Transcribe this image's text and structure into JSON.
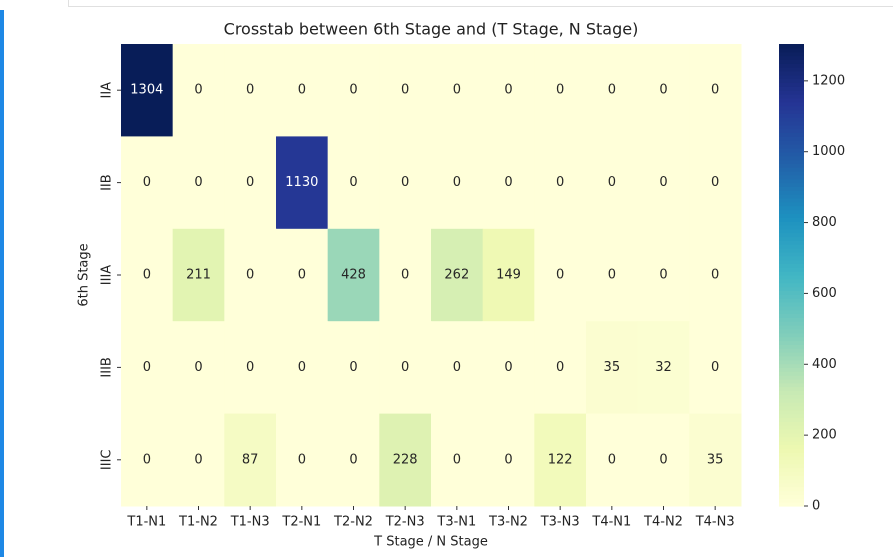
{
  "chart_data": {
    "type": "heatmap",
    "title": "Crosstab between 6th Stage and (T Stage, N Stage)",
    "xlabel": "T Stage / N Stage",
    "ylabel": "6th Stage",
    "x_categories": [
      "T1-N1",
      "T1-N2",
      "T1-N3",
      "T2-N1",
      "T2-N2",
      "T2-N3",
      "T3-N1",
      "T3-N2",
      "T3-N3",
      "T4-N1",
      "T4-N2",
      "T4-N3"
    ],
    "y_categories": [
      "IIA",
      "IIB",
      "IIIA",
      "IIIB",
      "IIIC"
    ],
    "values": [
      [
        1304,
        0,
        0,
        0,
        0,
        0,
        0,
        0,
        0,
        0,
        0,
        0
      ],
      [
        0,
        0,
        0,
        1130,
        0,
        0,
        0,
        0,
        0,
        0,
        0,
        0
      ],
      [
        0,
        211,
        0,
        0,
        428,
        0,
        262,
        149,
        0,
        0,
        0,
        0
      ],
      [
        0,
        0,
        0,
        0,
        0,
        0,
        0,
        0,
        0,
        35,
        32,
        0
      ],
      [
        0,
        0,
        87,
        0,
        0,
        228,
        0,
        0,
        122,
        0,
        0,
        35
      ]
    ],
    "colormap": [
      "#ffffd9",
      "#edf8b1",
      "#c7e9b4",
      "#7fcdbb",
      "#41b6c4",
      "#1d91c0",
      "#225ea8",
      "#253494",
      "#081d58"
    ],
    "zlim": [
      0,
      1304
    ],
    "zticks": [
      0,
      200,
      400,
      600,
      800,
      1000,
      1200
    ]
  }
}
